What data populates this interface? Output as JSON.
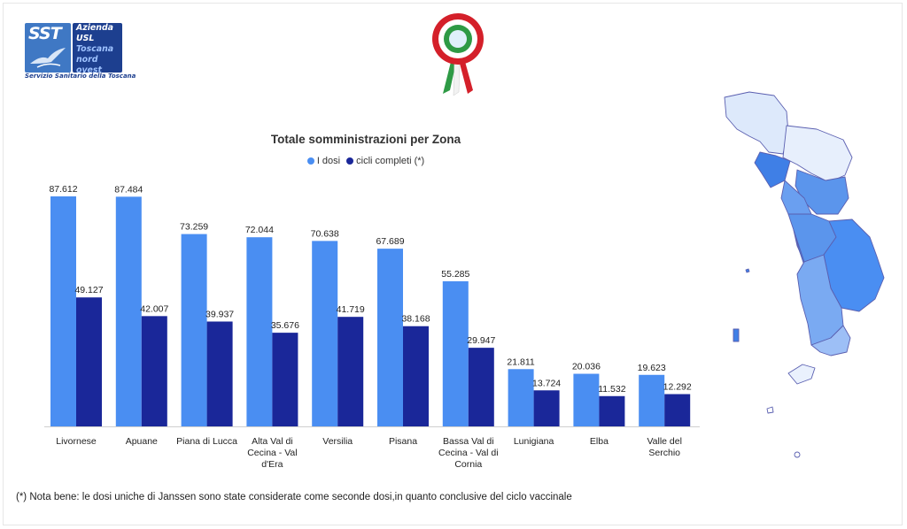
{
  "logo": {
    "sst": "SST",
    "lines": [
      "Azienda",
      "USL",
      "Toscana",
      "nord ovest"
    ],
    "foot": "Servizio Sanitario della Toscana"
  },
  "colors": {
    "first_dose": "#4a8ef2",
    "full_cycle": "#1a2799",
    "brand": "#1d3f8f"
  },
  "chart_data": {
    "type": "bar",
    "title": "Totale somministrazioni per Zona",
    "legend_position": "top-center",
    "grid": false,
    "categories": [
      "Livornese",
      "Apuane",
      "Piana di Lucca",
      "Alta Val di Cecina - Val d'Era",
      "Versilia",
      "Pisana",
      "Bassa Val di Cecina - Val di Cornia",
      "Lunigiana",
      "Elba",
      "Valle del Serchio"
    ],
    "category_lines": [
      [
        "Livornese"
      ],
      [
        "Apuane"
      ],
      [
        "Piana di Lucca"
      ],
      [
        "Alta Val di",
        "Cecina - Val",
        "d'Era"
      ],
      [
        "Versilia"
      ],
      [
        "Pisana"
      ],
      [
        "Bassa Val di",
        "Cecina - Val di",
        "Cornia"
      ],
      [
        "Lunigiana"
      ],
      [
        "Elba"
      ],
      [
        "Valle del",
        "Serchio"
      ]
    ],
    "series": [
      {
        "name": "I dosi",
        "values": [
          87612,
          87484,
          73259,
          72044,
          70638,
          67689,
          55285,
          21811,
          20036,
          19623
        ],
        "labels": [
          "87.612",
          "87.484",
          "73.259",
          "72.044",
          "70.638",
          "67.689",
          "55.285",
          "21.811",
          "20.036",
          "19.623"
        ]
      },
      {
        "name": "cicli completi (*)",
        "values": [
          49127,
          42007,
          39937,
          35676,
          41719,
          38168,
          29947,
          13724,
          11532,
          12292
        ],
        "labels": [
          "49.127",
          "42.007",
          "39.937",
          "35.676",
          "41.719",
          "38.168",
          "29.947",
          "13.724",
          "11.532",
          "12.292"
        ]
      }
    ],
    "ylim": [
      0,
      87612
    ]
  },
  "footnote": "(*) Nota bene: le dosi uniche di Janssen sono state considerate come seconde dosi,in quanto conclusive del ciclo vaccinale"
}
